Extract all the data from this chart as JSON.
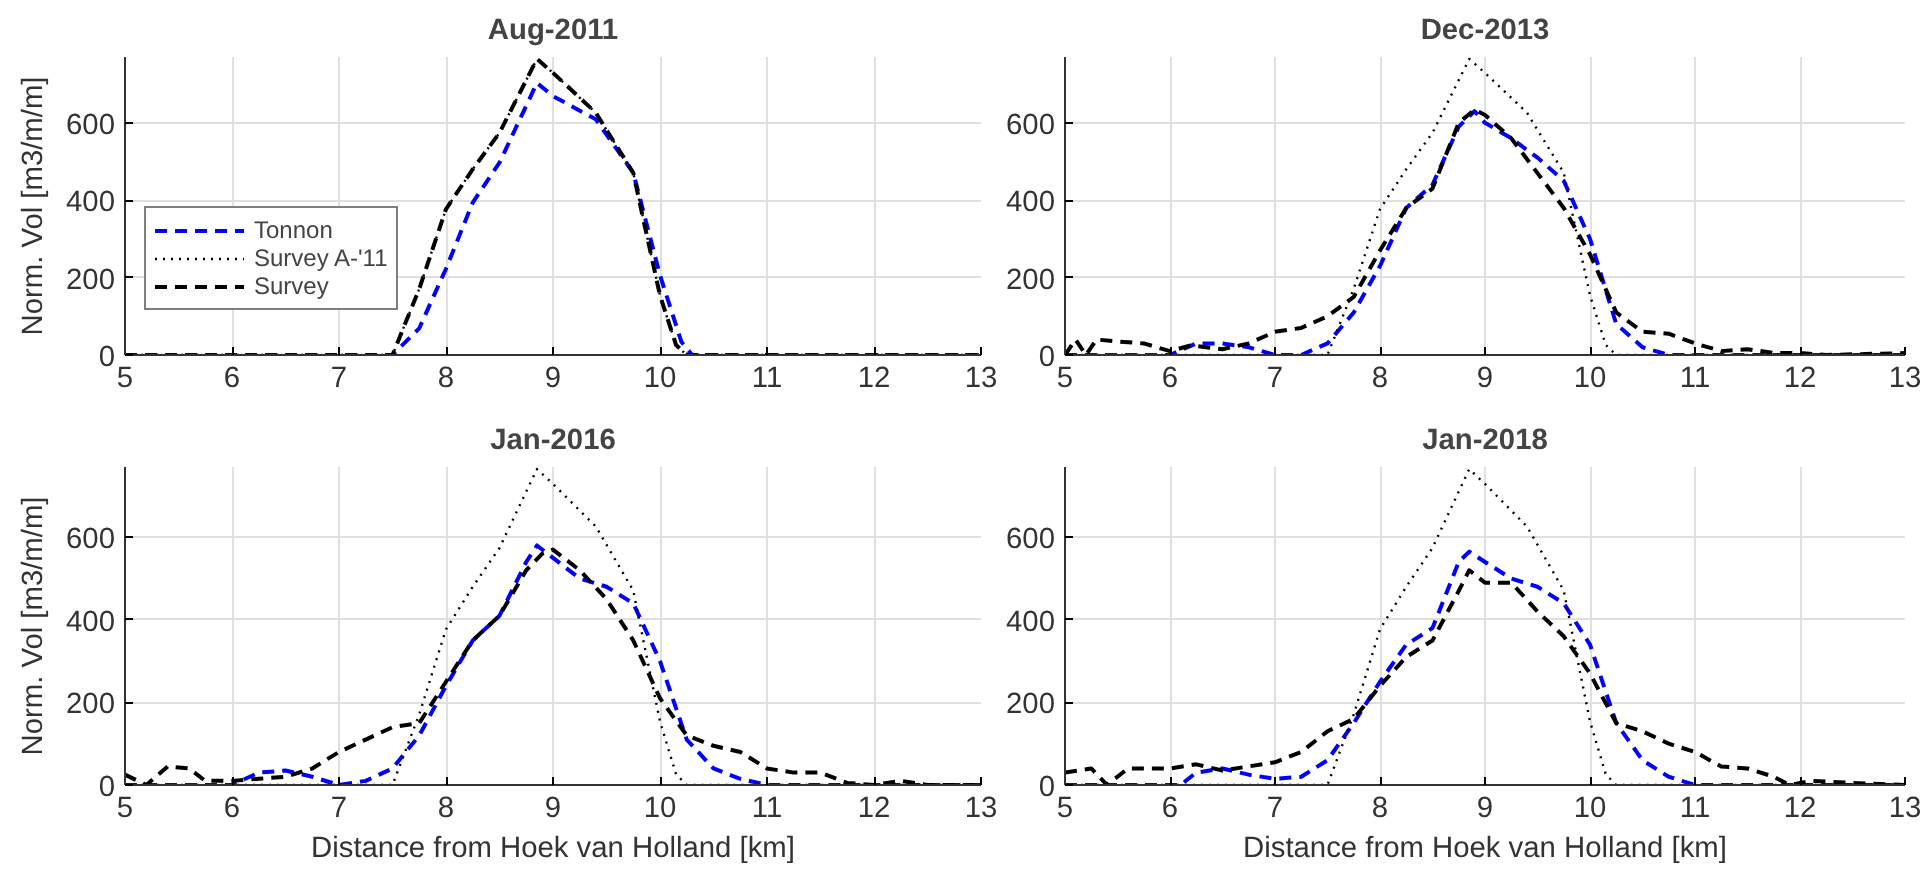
{
  "chart_data": [
    {
      "type": "line",
      "title": "Aug-2011",
      "ylabel": "Norm. Vol [m3/m/m]",
      "xlim": [
        5,
        13
      ],
      "xticks": [
        5,
        6,
        7,
        8,
        9,
        10,
        11,
        12,
        13
      ],
      "ylim": [
        0,
        770
      ],
      "yticks": [
        0,
        200,
        400,
        600
      ],
      "grid": true,
      "legend": "left",
      "series": [
        {
          "name": "Tonnon",
          "color": "#0000ff",
          "line_style": "dashed",
          "x": [
            5,
            7.5,
            7.75,
            8.0,
            8.25,
            8.5,
            8.85,
            9.0,
            9.4,
            9.75,
            10.0,
            10.2,
            10.3,
            13
          ],
          "values": [
            0,
            0,
            69,
            223,
            394,
            497,
            703,
            669,
            609,
            471,
            206,
            34,
            0,
            0
          ]
        },
        {
          "name": "Survey A-'11",
          "color": "#000000",
          "line_style": "dotted",
          "x": [
            5,
            7.5,
            7.75,
            8.0,
            8.25,
            8.5,
            8.85,
            9.0,
            9.4,
            9.75,
            9.85,
            10.0,
            10.15,
            10.25,
            13
          ],
          "values": [
            0,
            0,
            171,
            377,
            480,
            574,
            765,
            729,
            626,
            471,
            343,
            154,
            26,
            0,
            0
          ]
        },
        {
          "name": "Survey",
          "color": "#000000",
          "line_style": "dashed",
          "x": [
            5,
            7.5,
            7.75,
            8.0,
            8.25,
            8.5,
            8.85,
            9.0,
            9.4,
            9.75,
            9.85,
            10.0,
            10.15,
            10.25,
            13
          ],
          "values": [
            0,
            0,
            171,
            377,
            480,
            574,
            765,
            729,
            626,
            471,
            343,
            154,
            26,
            0,
            0
          ]
        }
      ]
    },
    {
      "type": "line",
      "title": "Dec-2013",
      "xlim": [
        5,
        13
      ],
      "xticks": [
        5,
        6,
        7,
        8,
        9,
        10,
        11,
        12,
        13
      ],
      "ylim": [
        0,
        770
      ],
      "yticks": [
        0,
        200,
        400,
        600
      ],
      "grid": true,
      "series": [
        {
          "color": "#0000ff",
          "line_style": "dashed",
          "x": [
            5,
            6.0,
            6.25,
            6.5,
            6.75,
            7.0,
            7.25,
            7.5,
            7.75,
            8.0,
            8.25,
            8.5,
            8.75,
            8.9,
            9.0,
            9.25,
            9.5,
            9.75,
            10.0,
            10.25,
            10.5,
            10.75,
            13
          ],
          "values": [
            0,
            0,
            30,
            30,
            20,
            0,
            0,
            30,
            110,
            230,
            380,
            440,
            590,
            630,
            600,
            560,
            510,
            450,
            300,
            80,
            20,
            0,
            0
          ]
        },
        {
          "color": "#000000",
          "line_style": "dotted",
          "x": [
            5,
            7.5,
            7.75,
            8.0,
            8.25,
            8.5,
            8.85,
            9.0,
            9.4,
            9.75,
            9.85,
            10.0,
            10.15,
            10.25,
            13
          ],
          "values": [
            0,
            0,
            171,
            377,
            480,
            574,
            765,
            729,
            626,
            471,
            343,
            154,
            26,
            0,
            0
          ]
        },
        {
          "color": "#000000",
          "line_style": "dashed",
          "x": [
            5,
            5.1,
            5.2,
            5.3,
            5.5,
            5.75,
            6.0,
            6.2,
            6.5,
            6.75,
            7.0,
            7.25,
            7.5,
            7.75,
            8.0,
            8.25,
            8.5,
            8.75,
            8.9,
            9.0,
            9.25,
            9.5,
            9.75,
            10.0,
            10.25,
            10.5,
            10.75,
            11.0,
            11.25,
            11.5,
            11.75,
            12.0,
            12.25,
            13
          ],
          "values": [
            0,
            40,
            0,
            40,
            35,
            30,
            10,
            25,
            15,
            30,
            60,
            70,
            100,
            150,
            270,
            380,
            430,
            600,
            634,
            620,
            560,
            470,
            380,
            260,
            110,
            60,
            55,
            30,
            10,
            15,
            5,
            5,
            0,
            5
          ]
        }
      ]
    },
    {
      "type": "line",
      "title": "Jan-2016",
      "xlabel": "Distance from Hoek van Holland [km]",
      "ylabel": "Norm. Vol [m3/m/m]",
      "xlim": [
        5,
        13
      ],
      "xticks": [
        5,
        6,
        7,
        8,
        9,
        10,
        11,
        12,
        13
      ],
      "ylim": [
        0,
        770
      ],
      "yticks": [
        0,
        200,
        400,
        600
      ],
      "grid": true,
      "series": [
        {
          "color": "#0000ff",
          "line_style": "dashed",
          "x": [
            5,
            6.0,
            6.25,
            6.5,
            6.75,
            7.0,
            7.25,
            7.5,
            7.75,
            8.0,
            8.25,
            8.5,
            8.75,
            8.85,
            9.0,
            9.25,
            9.5,
            9.75,
            10.0,
            10.25,
            10.5,
            10.75,
            11.0,
            13
          ],
          "values": [
            0,
            0,
            30,
            35,
            20,
            0,
            10,
            40,
            120,
            240,
            350,
            410,
            540,
            580,
            550,
            500,
            480,
            440,
            300,
            110,
            40,
            15,
            0,
            0
          ]
        },
        {
          "color": "#000000",
          "line_style": "dotted",
          "x": [
            5,
            7.5,
            7.75,
            8.0,
            8.25,
            8.5,
            8.85,
            9.0,
            9.4,
            9.75,
            9.85,
            10.0,
            10.15,
            10.25,
            13
          ],
          "values": [
            0,
            0,
            171,
            377,
            480,
            574,
            765,
            729,
            626,
            471,
            343,
            154,
            26,
            0,
            0
          ]
        },
        {
          "color": "#000000",
          "line_style": "dashed",
          "x": [
            5,
            5.2,
            5.4,
            5.6,
            5.75,
            6.0,
            6.25,
            6.5,
            6.75,
            7.0,
            7.25,
            7.5,
            7.75,
            8.0,
            8.25,
            8.5,
            8.75,
            8.9,
            9.0,
            9.25,
            9.5,
            9.75,
            10.0,
            10.25,
            10.5,
            10.75,
            11.0,
            11.25,
            11.5,
            11.75,
            12.0,
            12.25,
            12.5,
            13
          ],
          "values": [
            25,
            0,
            45,
            40,
            10,
            10,
            15,
            20,
            40,
            80,
            110,
            140,
            150,
            250,
            350,
            410,
            520,
            560,
            570,
            520,
            450,
            350,
            210,
            120,
            95,
            80,
            40,
            30,
            30,
            5,
            0,
            10,
            0,
            0
          ]
        }
      ]
    },
    {
      "type": "line",
      "title": "Jan-2018",
      "xlabel": "Distance from Hoek van Holland [km]",
      "xlim": [
        5,
        13
      ],
      "xticks": [
        5,
        6,
        7,
        8,
        9,
        10,
        11,
        12,
        13
      ],
      "ylim": [
        0,
        770
      ],
      "yticks": [
        0,
        200,
        400,
        600
      ],
      "grid": true,
      "series": [
        {
          "color": "#0000ff",
          "line_style": "dashed",
          "x": [
            5,
            6.1,
            6.25,
            6.5,
            6.75,
            7.0,
            7.25,
            7.5,
            7.75,
            8.0,
            8.25,
            8.5,
            8.75,
            8.85,
            9.0,
            9.25,
            9.5,
            9.75,
            10.0,
            10.25,
            10.5,
            10.75,
            11.0,
            13
          ],
          "values": [
            0,
            0,
            30,
            40,
            25,
            15,
            20,
            60,
            150,
            250,
            340,
            380,
            540,
            565,
            540,
            500,
            480,
            440,
            340,
            150,
            60,
            20,
            0,
            0
          ]
        },
        {
          "color": "#000000",
          "line_style": "dotted",
          "x": [
            5,
            7.5,
            7.75,
            8.0,
            8.25,
            8.5,
            8.85,
            9.0,
            9.4,
            9.75,
            9.85,
            10.0,
            10.15,
            10.25,
            13
          ],
          "values": [
            0,
            0,
            171,
            377,
            480,
            574,
            765,
            729,
            626,
            471,
            343,
            154,
            26,
            0,
            0
          ]
        },
        {
          "color": "#000000",
          "line_style": "dashed",
          "x": [
            5,
            5.25,
            5.4,
            5.6,
            6.0,
            6.25,
            6.5,
            6.75,
            7.0,
            7.25,
            7.5,
            7.75,
            8.0,
            8.25,
            8.5,
            8.75,
            8.85,
            9.0,
            9.25,
            9.5,
            9.75,
            10.0,
            10.25,
            10.5,
            10.75,
            11.0,
            11.25,
            11.5,
            11.75,
            11.9,
            12.1,
            12.5,
            13
          ],
          "values": [
            30,
            40,
            0,
            40,
            40,
            50,
            35,
            45,
            55,
            80,
            130,
            160,
            240,
            310,
            350,
            470,
            520,
            490,
            490,
            420,
            360,
            270,
            150,
            130,
            100,
            80,
            45,
            40,
            20,
            0,
            10,
            5,
            0
          ]
        }
      ]
    }
  ]
}
